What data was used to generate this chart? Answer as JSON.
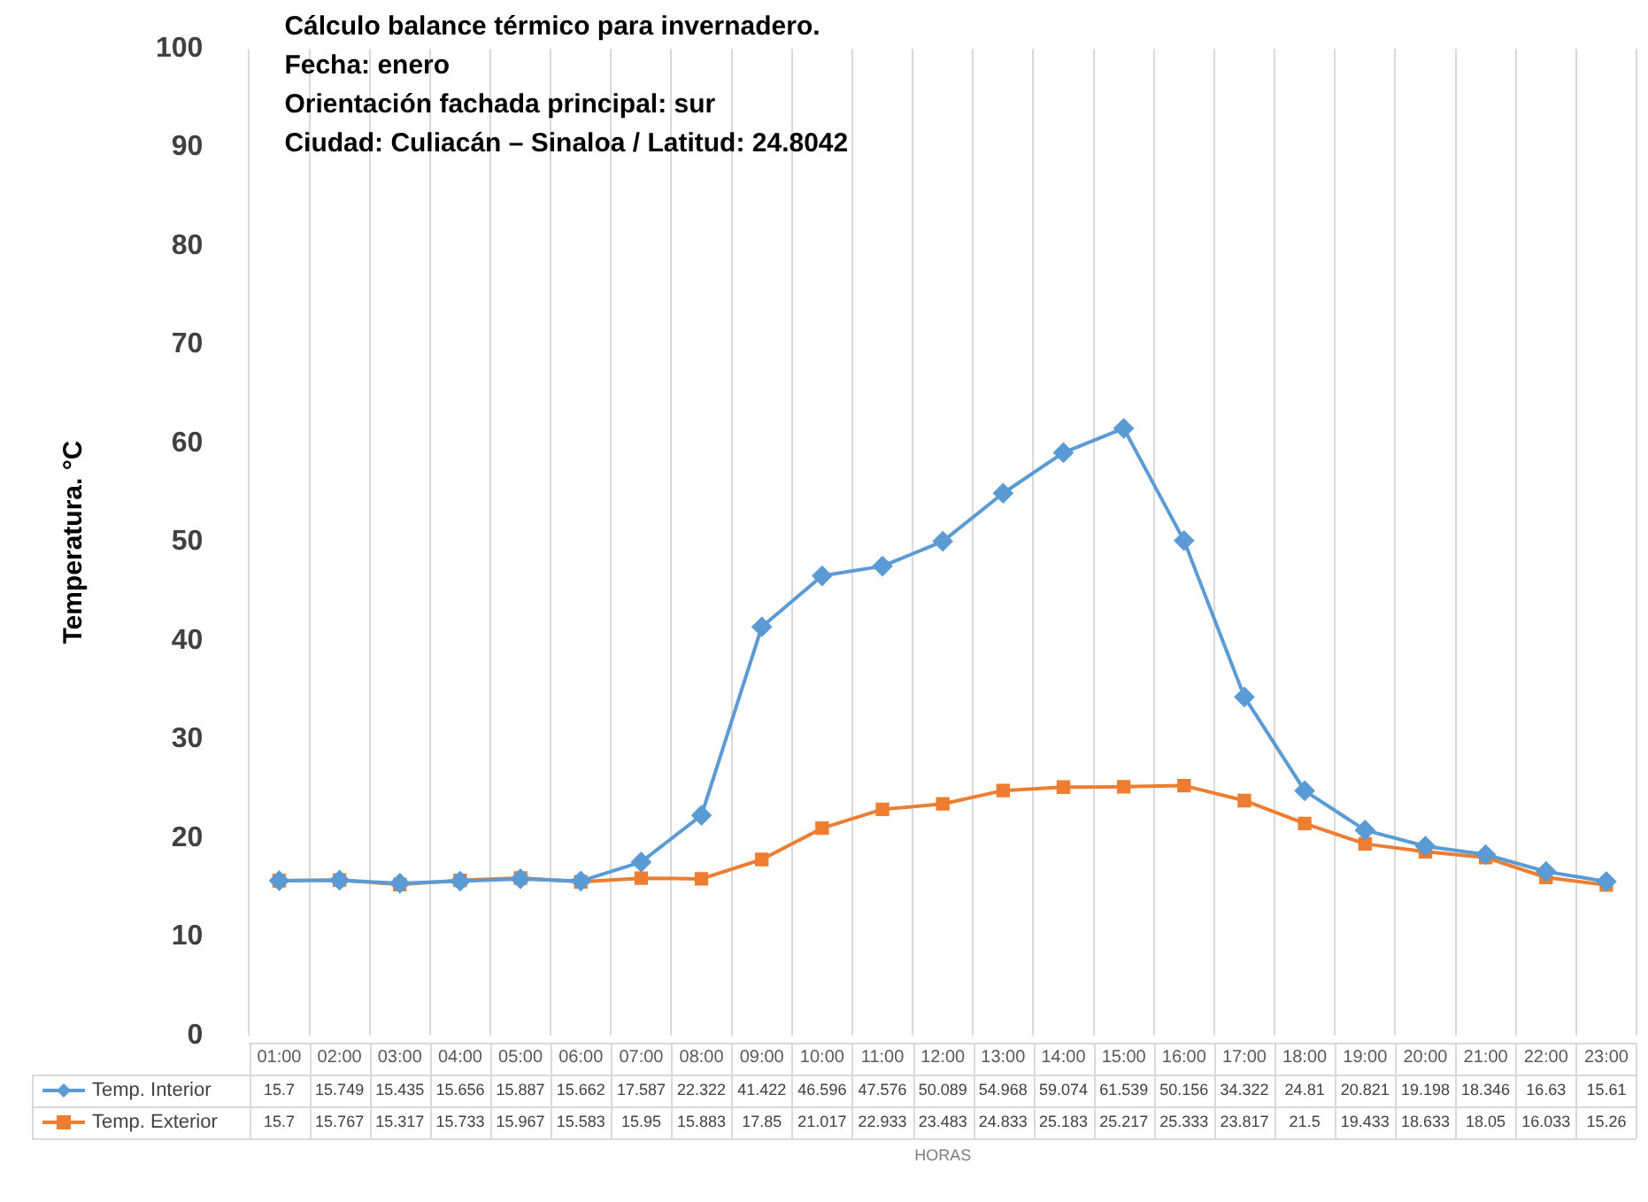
{
  "chart_data": {
    "type": "line",
    "title": "Cálculo balance térmico para invernadero.",
    "annotations": [
      "Fecha: enero",
      "Orientación fachada principal: sur",
      "Ciudad: Culiacán – Sinaloa / Latitud: 24.8042"
    ],
    "xlabel": "HORAS",
    "ylabel": "Temperatura. °C",
    "categories": [
      "01:00",
      "02:00",
      "03:00",
      "04:00",
      "05:00",
      "06:00",
      "07:00",
      "08:00",
      "09:00",
      "10:00",
      "11:00",
      "12:00",
      "13:00",
      "14:00",
      "15:00",
      "16:00",
      "17:00",
      "18:00",
      "19:00",
      "20:00",
      "21:00",
      "22:00",
      "23:00"
    ],
    "series": [
      {
        "name": "Temp. Interior",
        "color": "#5b9bd5",
        "marker": "diamond",
        "values": [
          15.7,
          15.749,
          15.435,
          15.656,
          15.887,
          15.662,
          17.587,
          22.322,
          41.422,
          46.596,
          47.576,
          50.089,
          54.968,
          59.074,
          61.539,
          50.156,
          34.322,
          24.81,
          20.821,
          19.198,
          18.346,
          16.63,
          15.61
        ]
      },
      {
        "name": "Temp. Exterior",
        "color": "#ed7d31",
        "marker": "square",
        "values": [
          15.7,
          15.767,
          15.317,
          15.733,
          15.967,
          15.583,
          15.95,
          15.883,
          17.85,
          21.017,
          22.933,
          23.483,
          24.833,
          25.183,
          25.217,
          25.333,
          23.817,
          21.5,
          19.433,
          18.633,
          18.05,
          16.033,
          15.26
        ]
      }
    ],
    "ylim": [
      0,
      100
    ],
    "yticks": [
      0,
      10,
      20,
      30,
      40,
      50,
      60,
      70,
      80,
      90,
      100
    ],
    "grid": "x",
    "legend": "bottom",
    "data_labels": true
  }
}
